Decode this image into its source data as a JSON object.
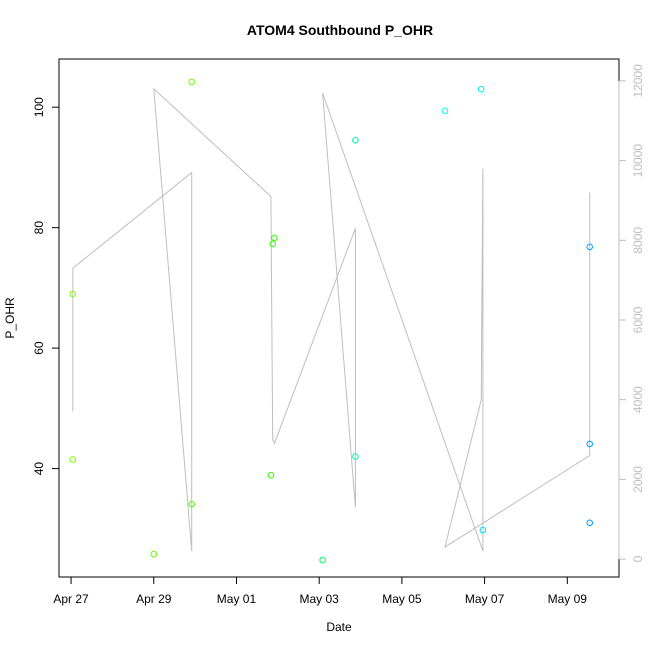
{
  "chart_data": {
    "type": "scatter",
    "title": "ATOM4 Southbound P_OHR",
    "xlabel": "Date",
    "ylabel": "P_OHR",
    "x_tick_labels": [
      "Apr 27",
      "Apr 29",
      "May 01",
      "May 03",
      "May 05",
      "May 07",
      "May 09"
    ],
    "y_ticks": [
      40,
      60,
      80,
      100
    ],
    "y_right_ticks": [
      0,
      2000,
      4000,
      6000,
      8000,
      10000,
      12000
    ],
    "xlim": [
      "2023-04-26 17:00",
      "2023-05-10 06:00"
    ],
    "ylim": [
      22,
      108
    ],
    "y_right_lim": [
      -450,
      12550
    ],
    "grid": false,
    "points": [
      {
        "x": "2023-04-27 01:00",
        "y": 69.0,
        "color": "#7fff00"
      },
      {
        "x": "2023-04-27 01:00",
        "y": 41.5,
        "color": "#7fff00"
      },
      {
        "x": "2023-04-29 00:00",
        "y": 25.8,
        "color": "#66ff00"
      },
      {
        "x": "2023-04-29 22:00",
        "y": 104.2,
        "color": "#66ff00"
      },
      {
        "x": "2023-04-29 22:00",
        "y": 34.1,
        "color": "#4cff00"
      },
      {
        "x": "2023-05-01 20:00",
        "y": 38.9,
        "color": "#33ff00"
      },
      {
        "x": "2023-05-01 21:00",
        "y": 77.3,
        "color": "#33ff00"
      },
      {
        "x": "2023-05-01 22:00",
        "y": 78.3,
        "color": "#33ff00"
      },
      {
        "x": "2023-05-03 02:00",
        "y": 24.8,
        "color": "#00ff66"
      },
      {
        "x": "2023-05-03 21:00",
        "y": 94.5,
        "color": "#00ff99"
      },
      {
        "x": "2023-05-03 21:00",
        "y": 42.0,
        "color": "#00ffa0"
      },
      {
        "x": "2023-05-06 01:00",
        "y": 99.4,
        "color": "#00ffe6"
      },
      {
        "x": "2023-05-06 22:00",
        "y": 103.0,
        "color": "#00f0ff"
      },
      {
        "x": "2023-05-06 23:00",
        "y": 29.8,
        "color": "#00ddff"
      },
      {
        "x": "2023-05-09 13:00",
        "y": 76.8,
        "color": "#00a2ff"
      },
      {
        "x": "2023-05-09 13:00",
        "y": 44.1,
        "color": "#00a2ff"
      },
      {
        "x": "2023-05-09 13:00",
        "y": 31.0,
        "color": "#0099ff"
      }
    ],
    "line_series": {
      "axis": "right",
      "color": "#bebebe",
      "points": [
        {
          "x": "2023-04-27 01:00",
          "y": 3700
        },
        {
          "x": "2023-04-27 01:00",
          "y": 7300
        },
        {
          "x": "2023-04-29 22:00",
          "y": 9700
        },
        {
          "x": "2023-04-29 22:00",
          "y": 200
        },
        {
          "x": "2023-04-29 00:00",
          "y": 11800
        },
        {
          "x": "2023-05-01 20:00",
          "y": 9100
        },
        {
          "x": "2023-05-01 21:00",
          "y": 3000
        },
        {
          "x": "2023-05-01 22:00",
          "y": 2900
        },
        {
          "x": "2023-05-03 21:00",
          "y": 8300
        },
        {
          "x": "2023-05-03 21:00",
          "y": 1300
        },
        {
          "x": "2023-05-03 02:00",
          "y": 11700
        },
        {
          "x": "2023-05-06 23:00",
          "y": 200
        },
        {
          "x": "2023-05-06 23:00",
          "y": 9800
        },
        {
          "x": "2023-05-06 22:00",
          "y": 4000
        },
        {
          "x": "2023-05-06 01:00",
          "y": 300
        },
        {
          "x": "2023-05-09 13:00",
          "y": 2600
        },
        {
          "x": "2023-05-09 13:00",
          "y": 9200
        }
      ]
    },
    "colors": {
      "axis": "#000000",
      "right_axis": "#bebebe",
      "line": "#bebebe"
    }
  }
}
